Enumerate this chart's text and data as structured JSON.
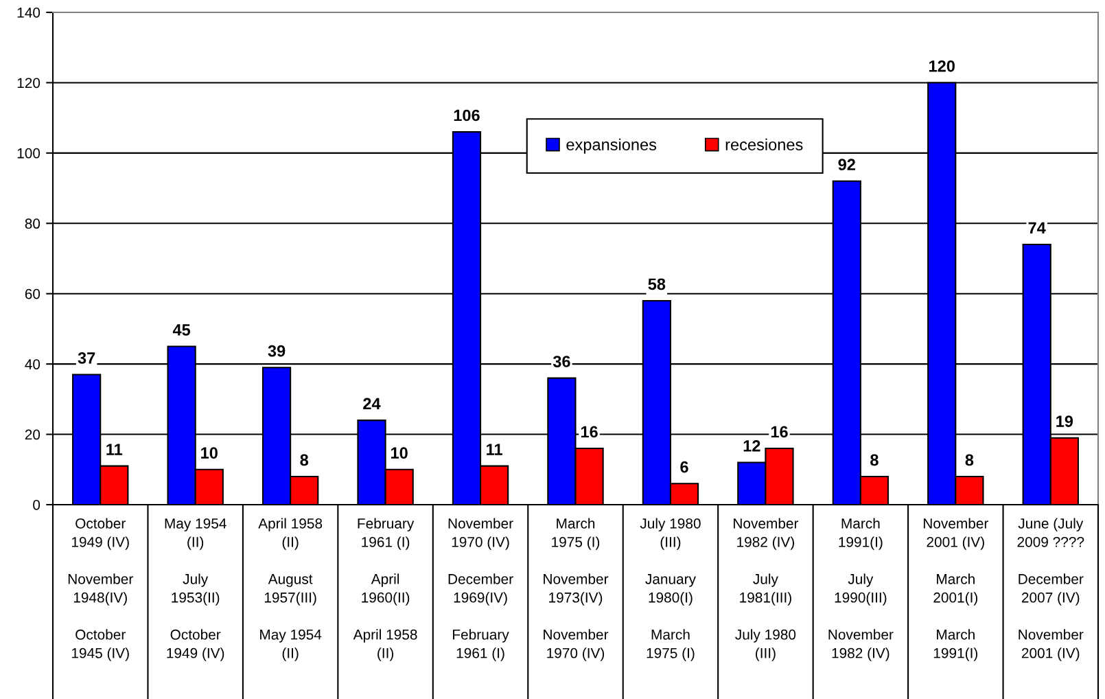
{
  "chart_data": {
    "type": "bar",
    "categories": [
      "October\n1949 (IV)\n\nNovember\n1948(IV)\n\nOctober\n1945 (IV)",
      "May 1954\n(II)\n\nJuly\n1953(II)\n\nOctober\n1949 (IV)",
      "April 1958\n(II)\n\nAugust\n1957(III)\n\nMay 1954\n(II)",
      "February\n1961 (I)\n\nApril\n1960(II)\n\nApril 1958\n(II)",
      "November\n1970 (IV)\n\nDecember\n1969(IV)\n\nFebruary\n1961 (I)",
      "March\n1975 (I)\n\nNovember\n1973(IV)\n\nNovember\n1970 (IV)",
      "July 1980\n(III)\n\nJanuary\n1980(I)\n\nMarch\n1975 (I)",
      "November\n1982 (IV)\n\nJuly\n1981(III)\n\nJuly 1980\n(III)",
      "March\n1991(I)\n\nJuly\n1990(III)\n\nNovember\n1982 (IV)",
      "November\n2001 (IV)\n\nMarch\n2001(I)\n\nMarch\n1991(I)",
      "June (July\n2009 ????\n\nDecember\n2007 (IV)\n\nNovember\n2001 (IV)"
    ],
    "series": [
      {
        "name": "expansiones",
        "color": "#0000ff",
        "values": [
          37,
          45,
          39,
          24,
          106,
          36,
          58,
          12,
          92,
          120,
          74
        ]
      },
      {
        "name": "recesiones",
        "color": "#ff0000",
        "values": [
          11,
          10,
          8,
          10,
          11,
          16,
          6,
          16,
          8,
          8,
          19
        ]
      }
    ],
    "ylim": [
      0,
      140
    ],
    "yticks": [
      0,
      20,
      40,
      60,
      80,
      100,
      120,
      140
    ],
    "grid": "y",
    "legend": "top",
    "data_labels": true
  }
}
